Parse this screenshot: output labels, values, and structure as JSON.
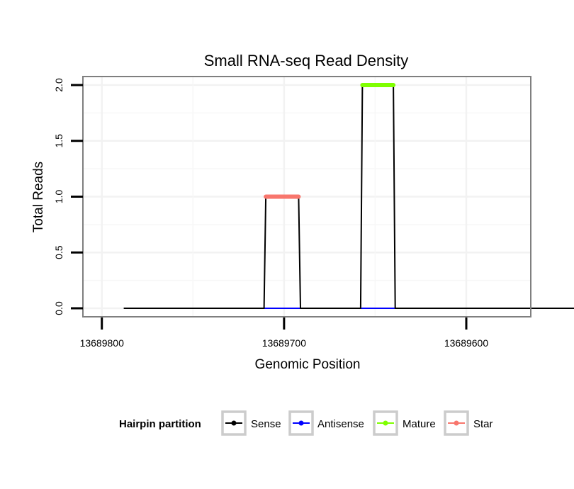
{
  "chart_data": {
    "type": "line",
    "title": "Small RNA-seq Read Density",
    "xlabel": "Genomic Position",
    "ylabel": "Total Reads",
    "xlim": [
      13689810,
      13689565
    ],
    "ylim": [
      -0.07,
      2.07
    ],
    "x_ticks": [
      13689800,
      13689700,
      13689600
    ],
    "x_tick_labels": [
      "13689800",
      "13689700",
      "13689600"
    ],
    "y_ticks": [
      0.0,
      0.5,
      1.0,
      1.5,
      2.0
    ],
    "y_tick_labels": [
      "0.0",
      "0.5",
      "1.0",
      "1.5",
      "2.0"
    ],
    "grid": true,
    "legend_position": "bottom",
    "series": [
      {
        "name": "Sense",
        "color": "#000000",
        "x": [
          13689788,
          13689711,
          13689710,
          13689692,
          13689691,
          13689658,
          13689657,
          13689640,
          13689639,
          13689540
        ],
        "y": [
          0,
          0,
          1,
          1,
          0,
          0,
          2,
          2,
          0,
          0
        ]
      },
      {
        "name": "Antisense",
        "color": "#0000ff",
        "x": [
          13689711,
          13689691,
          13689658,
          13689639
        ],
        "y": [
          0,
          0,
          0,
          0
        ]
      },
      {
        "name": "Mature",
        "color": "#7fff00",
        "x": [
          13689657,
          13689640
        ],
        "y": [
          2,
          2
        ]
      },
      {
        "name": "Star",
        "color": "#f8766d",
        "x": [
          13689710,
          13689692
        ],
        "y": [
          1,
          1
        ]
      }
    ],
    "legend": {
      "title": "Hairpin partition",
      "entries": [
        {
          "label": "Sense",
          "color": "#000000"
        },
        {
          "label": "Antisense",
          "color": "#0000ff"
        },
        {
          "label": "Mature",
          "color": "#7fff00"
        },
        {
          "label": "Star",
          "color": "#f8766d"
        }
      ]
    }
  }
}
